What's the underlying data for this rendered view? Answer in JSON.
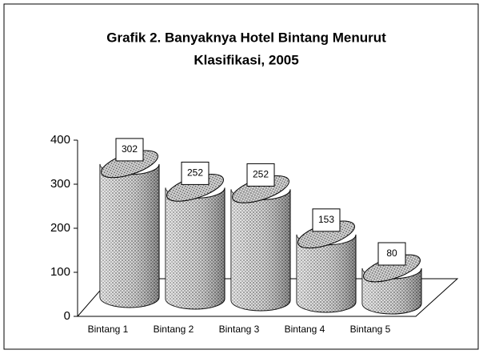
{
  "chart_data": {
    "type": "bar",
    "title": [
      "Grafik 2. Banyaknya Hotel Bintang Menurut",
      "Klasifikasi, 2005"
    ],
    "categories": [
      "Bintang 1",
      "Bintang 2",
      "Bintang 3",
      "Bintang 4",
      "Bintang 5"
    ],
    "values": [
      302,
      252,
      252,
      153,
      80
    ],
    "color": "#a0a0a0",
    "ylim": [
      0,
      400
    ],
    "yticks": [
      0,
      100,
      200,
      300,
      400
    ]
  }
}
